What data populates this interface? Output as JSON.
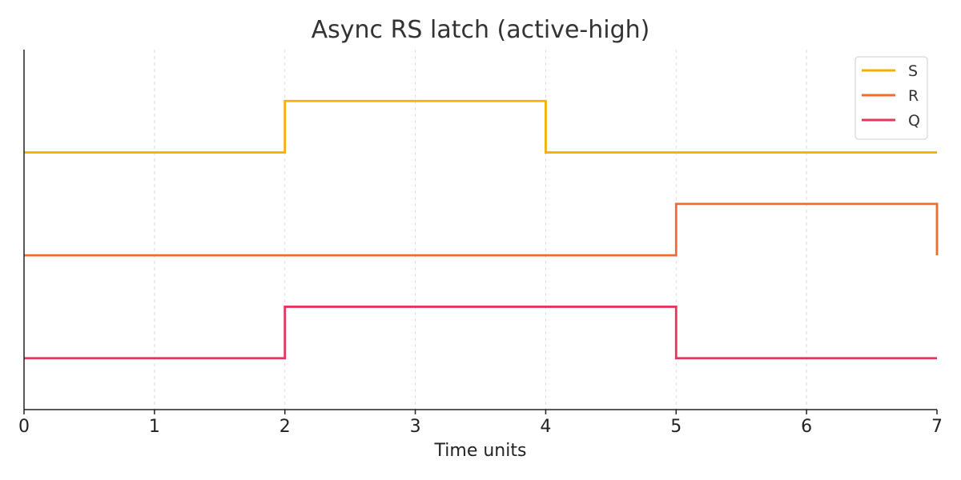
{
  "chart_data": {
    "type": "line",
    "step": "post",
    "title": "Async RS latch (active-high)",
    "xlabel": "Time units",
    "ylabel": "",
    "xlim": [
      0,
      7
    ],
    "xticks": [
      0,
      1,
      2,
      3,
      4,
      5,
      6,
      7
    ],
    "grid": "vertical-dashed",
    "legend_position": "top-right",
    "y_ticks_shown": false,
    "series": [
      {
        "name": "S",
        "color": "#f5b000",
        "baseline": 4,
        "x": [
          0,
          2,
          4,
          7
        ],
        "y": [
          0,
          1,
          0,
          0
        ]
      },
      {
        "name": "R",
        "color": "#ee6c2c",
        "baseline": 2,
        "x": [
          0,
          5,
          7
        ],
        "y": [
          0,
          1,
          0
        ]
      },
      {
        "name": "Q",
        "color": "#e8345a",
        "baseline": 0,
        "x": [
          0,
          2,
          5,
          7
        ],
        "y": [
          0,
          1,
          0,
          0
        ]
      }
    ]
  }
}
